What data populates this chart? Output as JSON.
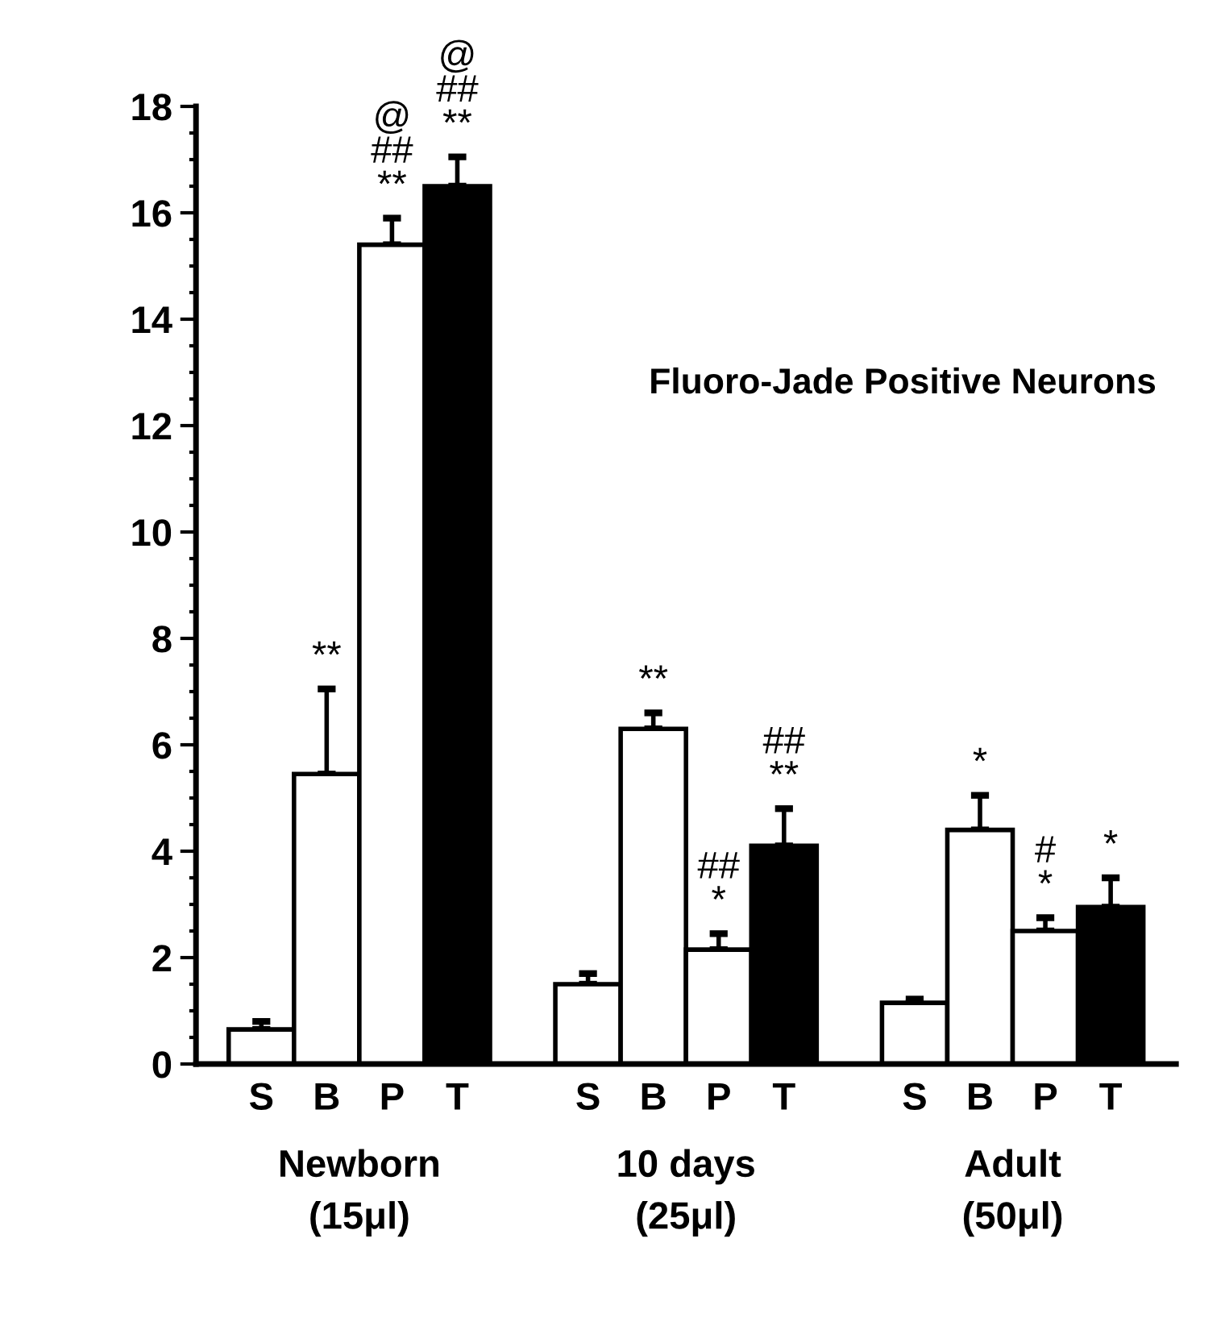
{
  "chart_data": {
    "type": "bar",
    "title": "Fluoro-Jade Positive Neurons",
    "categories": [
      "S",
      "B",
      "P",
      "T",
      null,
      "S",
      "B",
      "P",
      "T",
      null,
      "S",
      "B",
      "P",
      "T"
    ],
    "values": [
      0.65,
      5.45,
      15.4,
      16.5,
      null,
      1.5,
      6.3,
      2.15,
      4.1,
      null,
      1.15,
      4.4,
      2.5,
      2.95
    ],
    "colors": [
      "#ffffff",
      "#ffffff",
      "#ffffff",
      "#000000",
      null,
      "#ffffff",
      "#ffffff",
      "#ffffff",
      "#000000",
      null,
      "#ffffff",
      "#ffffff",
      "#ffffff",
      "#000000"
    ],
    "errors": [
      [
        0.65,
        0.8
      ],
      [
        5.45,
        7.05
      ],
      [
        15.4,
        15.9
      ],
      [
        16.5,
        17.05
      ],
      null,
      [
        1.5,
        1.7
      ],
      [
        6.3,
        6.6
      ],
      [
        2.15,
        2.45
      ],
      [
        4.1,
        4.8
      ],
      null,
      [
        1.15,
        1.22
      ],
      [
        4.4,
        5.05
      ],
      [
        2.5,
        2.75
      ],
      [
        2.95,
        3.5
      ]
    ],
    "ylim": [
      0,
      18
    ],
    "yticks": [
      0,
      2,
      4,
      6,
      8,
      10,
      12,
      14,
      16,
      18
    ],
    "grid": false,
    "value_labels": [
      null,
      "**",
      "@\n##\n**",
      "@\n##\n**",
      null,
      null,
      "**",
      "##\n*",
      "##\n**",
      null,
      null,
      "*",
      "#\n*",
      "*"
    ],
    "annotations": [
      "Newborn\n(15μl)",
      "10 days\n(25μl)",
      "Adult\n(50μl)"
    ]
  }
}
